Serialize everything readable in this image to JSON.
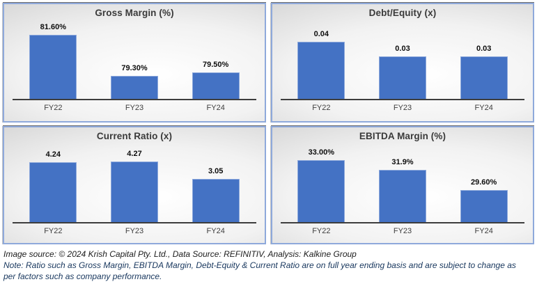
{
  "colors": {
    "page_background": "#FFFFFF",
    "bar_fill": "#4472C4",
    "bar_border": "#8FAADC",
    "panel_border": "#8EA9DB",
    "panel_shadow": "#6E6E6E",
    "title_text": "#3A3A3A",
    "value_label_text": "#0D0D0D",
    "axis_line": "#3D3D3D",
    "tick_text": "#3F3F3F",
    "footer_source_text": "#1C1C1C",
    "footer_note_text": "#17365D"
  },
  "chart_data": [
    {
      "type": "bar",
      "title": "Gross Margin (%)",
      "categories": [
        "FY22",
        "FY23",
        "FY24"
      ],
      "values": [
        81.6,
        79.3,
        79.5
      ],
      "data_labels": [
        "81.60%",
        "79.30%",
        "79.50%"
      ],
      "ylim": [
        78,
        82
      ],
      "xlabel": "",
      "ylabel": "",
      "grid": false,
      "legend": false
    },
    {
      "type": "bar",
      "title": "Debt/Equity (x)",
      "categories": [
        "FY22",
        "FY23",
        "FY24"
      ],
      "values": [
        0.04,
        0.03,
        0.03
      ],
      "data_labels": [
        "0.04",
        "0.03",
        "0.03"
      ],
      "ylim": [
        0,
        0.05
      ],
      "xlabel": "",
      "ylabel": "",
      "grid": false,
      "legend": false
    },
    {
      "type": "bar",
      "title": "Current Ratio (x)",
      "categories": [
        "FY22",
        "FY23",
        "FY24"
      ],
      "values": [
        4.24,
        4.27,
        3.05
      ],
      "data_labels": [
        "4.24",
        "4.27",
        "3.05"
      ],
      "ylim": [
        0,
        5
      ],
      "xlabel": "",
      "ylabel": "",
      "grid": false,
      "legend": false
    },
    {
      "type": "bar",
      "title": "EBITDA Margin (%)",
      "categories": [
        "FY22",
        "FY23",
        "FY24"
      ],
      "values": [
        33.0,
        31.9,
        29.6
      ],
      "data_labels": [
        "33.00%",
        "31.9%",
        "29.60%"
      ],
      "ylim": [
        26,
        34
      ],
      "xlabel": "",
      "ylabel": "",
      "grid": false,
      "legend": false
    }
  ],
  "footer": {
    "source": "Image source: © 2024 Krish Capital Pty. Ltd., Data Source: REFINITIV, Analysis: Kalkine Group",
    "note_line1": "Note: Ratio such as Gross Margin, EBITDA Margin, Debt-Equity & Current Ratio are on full year ending basis and are subject to change as",
    "note_line2": "per factors such as company performance."
  }
}
